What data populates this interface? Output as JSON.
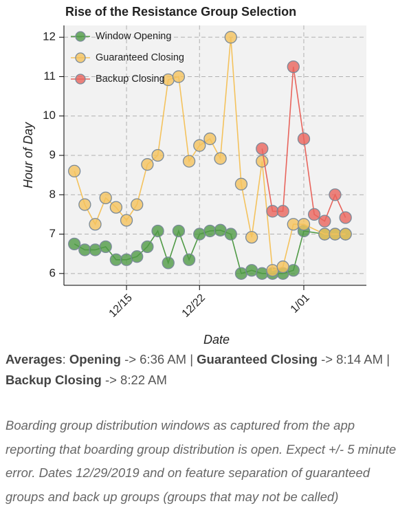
{
  "chart_data": {
    "type": "line",
    "title": "Rise of the Resistance Group Selection",
    "xlabel": "Date",
    "ylabel": "Hour of Day",
    "xlim": [
      "12/09",
      "1/07"
    ],
    "xticks": [
      "12/15",
      "12/22",
      "1/01"
    ],
    "ylim": [
      5.7,
      12.3
    ],
    "yticks": [
      6,
      7,
      8,
      9,
      10,
      11,
      12
    ],
    "grid": true,
    "legend": "upper left",
    "series": [
      {
        "name": "Window Opening",
        "color": "#4f9a45",
        "x": [
          "12/10",
          "12/11",
          "12/12",
          "12/13",
          "12/14",
          "12/15",
          "12/16",
          "12/17",
          "12/18",
          "12/19",
          "12/20",
          "12/21",
          "12/22",
          "12/23",
          "12/24",
          "12/25",
          "12/26",
          "12/27",
          "12/28",
          "12/29",
          "12/30",
          "12/31",
          "1/01",
          "1/03",
          "1/04",
          "1/05"
        ],
        "values": [
          6.75,
          6.6,
          6.6,
          6.68,
          6.35,
          6.35,
          6.43,
          6.68,
          7.08,
          6.27,
          7.08,
          6.35,
          7.0,
          7.08,
          7.1,
          7.0,
          6.0,
          6.08,
          6.0,
          6.0,
          6.0,
          6.08,
          7.08,
          7.0,
          7.0,
          7.0
        ]
      },
      {
        "name": "Guaranteed Closing",
        "color": "#f4c25c",
        "x": [
          "12/10",
          "12/11",
          "12/12",
          "12/13",
          "12/14",
          "12/15",
          "12/16",
          "12/17",
          "12/18",
          "12/19",
          "12/20",
          "12/21",
          "12/22",
          "12/23",
          "12/24",
          "12/25",
          "12/26",
          "12/27",
          "12/28",
          "12/29",
          "12/30",
          "12/31",
          "1/01",
          "1/03",
          "1/04",
          "1/05"
        ],
        "values": [
          8.6,
          7.75,
          7.25,
          7.92,
          7.68,
          7.35,
          7.75,
          8.77,
          9.0,
          10.92,
          11.0,
          8.85,
          9.25,
          9.42,
          8.92,
          12.0,
          8.27,
          6.92,
          8.85,
          6.08,
          6.17,
          7.25,
          7.25,
          7.0,
          7.0,
          7.0
        ]
      },
      {
        "name": "Backup Closing",
        "color": "#e8645c",
        "x": [
          "12/28",
          "12/29",
          "12/30",
          "12/31",
          "1/01",
          "1/02",
          "1/03",
          "1/04",
          "1/05"
        ],
        "values": [
          9.17,
          7.58,
          7.58,
          11.25,
          9.42,
          7.5,
          7.33,
          8.0,
          7.42
        ]
      }
    ]
  },
  "averages": [
    {
      "text": "Averages",
      "bold": true
    },
    {
      "text": ": "
    },
    {
      "text": "Opening",
      "bold": true
    },
    {
      "text": " -> 6:36 AM | "
    },
    {
      "text": "Guaranteed Closing",
      "bold": true
    },
    {
      "text": " -> 8:14 AM | "
    },
    {
      "text": "Backup Closing",
      "bold": true
    },
    {
      "text": " -> 8:22 AM"
    }
  ],
  "note": "Boarding group distribution windows as captured from the app reporting that boarding group distribution is open. Expect +/- 5 minute error. Dates 12/29/2019 and on feature separation of guaranteed groups and back up groups (groups that may not be called)"
}
